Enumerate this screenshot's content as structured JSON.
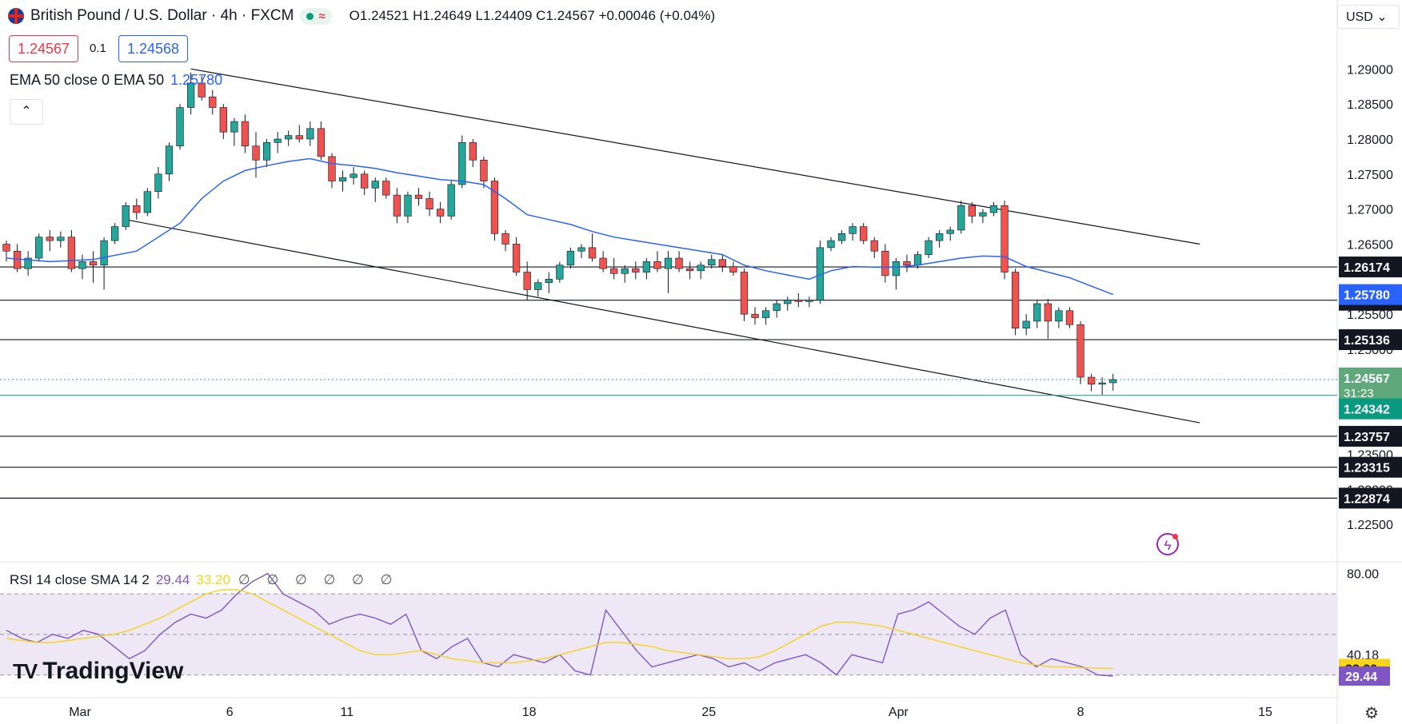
{
  "header": {
    "symbol_title": "British Pound / U.S. Dollar · 4h · FXCM",
    "ohlc": "O1.24521 H1.24649 L1.24409 C1.24567 +0.00046 (+0.04%)",
    "toggle_wave": "≈"
  },
  "quote": {
    "bid": "1.24567",
    "spread": "0.1",
    "ask": "1.24568"
  },
  "indicator": {
    "ema_label": "EMA 50 close 0 EMA 50",
    "ema_value": "1.25780",
    "collapse_icon": "chevron-up-icon",
    "collapse_glyph": "⌃"
  },
  "rsi_indicator": {
    "label": "RSI 14 close SMA 14 2",
    "rsi_value": "29.44",
    "sma_value": "33.20",
    "nulls": "∅ ∅ ∅ ∅ ∅ ∅"
  },
  "currency": "USD ⌄",
  "brand": {
    "name": "TradingView",
    "mark": "TV"
  },
  "icons": {
    "alert": "bolt-icon",
    "settings": "gear-icon",
    "settings_glyph": "⚙",
    "alert_glyph": "ϟ"
  },
  "colors": {
    "up": "#26a69a",
    "down": "#ef5350",
    "ema": "#2962ff",
    "rsi": "#7e57c2",
    "rsi_sma": "#f7d31b",
    "rsi_band": "#ede7f6"
  },
  "chart_data": [
    {
      "type": "candlestick",
      "title": "British Pound / U.S. Dollar · 4h · FXCM",
      "x_ticks": [
        "Mar",
        "6",
        "11",
        "18",
        "25",
        "Apr",
        "8",
        "15"
      ],
      "y_ticks": [
        "1.29000",
        "1.28500",
        "1.28000",
        "1.27500",
        "1.27000",
        "1.26500",
        "1.25500",
        "1.25000",
        "1.23500",
        "1.23000",
        "1.22500"
      ],
      "ylim": [
        1.22,
        1.293
      ],
      "candles": [
        [
          0,
          1.265,
          1.2655,
          1.2625,
          1.264
        ],
        [
          0.5,
          1.264,
          1.265,
          1.261,
          1.2615
        ],
        [
          1,
          1.2615,
          1.264,
          1.2605,
          1.263
        ],
        [
          1.5,
          1.263,
          1.2665,
          1.2625,
          1.266
        ],
        [
          2,
          1.266,
          1.267,
          1.264,
          1.2655
        ],
        [
          2.5,
          1.2655,
          1.2668,
          1.2645,
          1.266
        ],
        [
          3,
          1.266,
          1.267,
          1.261,
          1.2615
        ],
        [
          3.5,
          1.2615,
          1.2635,
          1.26,
          1.2625
        ],
        [
          4,
          1.2625,
          1.264,
          1.2595,
          1.262
        ],
        [
          4.5,
          1.262,
          1.266,
          1.2585,
          1.2655
        ],
        [
          5,
          1.2655,
          1.268,
          1.265,
          1.2675
        ],
        [
          5.5,
          1.2675,
          1.271,
          1.267,
          1.2705
        ],
        [
          6,
          1.2705,
          1.2715,
          1.2685,
          1.2695
        ],
        [
          6.5,
          1.2695,
          1.273,
          1.269,
          1.2725
        ],
        [
          7,
          1.2725,
          1.276,
          1.2715,
          1.275
        ],
        [
          7.5,
          1.275,
          1.2795,
          1.274,
          1.279
        ],
        [
          8,
          1.279,
          1.285,
          1.2785,
          1.2845
        ],
        [
          8.5,
          1.2845,
          1.2895,
          1.2835,
          1.288
        ],
        [
          9,
          1.288,
          1.289,
          1.2855,
          1.286
        ],
        [
          9.5,
          1.286,
          1.287,
          1.2835,
          1.2845
        ],
        [
          10,
          1.2845,
          1.285,
          1.28,
          1.281
        ],
        [
          10.5,
          1.281,
          1.283,
          1.279,
          1.2825
        ],
        [
          11,
          1.2825,
          1.2835,
          1.278,
          1.279
        ],
        [
          11.5,
          1.279,
          1.281,
          1.2745,
          1.277
        ],
        [
          12,
          1.277,
          1.28,
          1.276,
          1.2795
        ],
        [
          12.5,
          1.2795,
          1.281,
          1.278,
          1.28
        ],
        [
          13,
          1.28,
          1.2812,
          1.279,
          1.2805
        ],
        [
          13.5,
          1.2805,
          1.282,
          1.2795,
          1.28
        ],
        [
          14,
          1.28,
          1.2825,
          1.279,
          1.2815
        ],
        [
          14.5,
          1.2815,
          1.2825,
          1.277,
          1.2775
        ],
        [
          15,
          1.2775,
          1.278,
          1.273,
          1.274
        ],
        [
          15.5,
          1.274,
          1.2755,
          1.2725,
          1.2745
        ],
        [
          16,
          1.2745,
          1.276,
          1.2735,
          1.275
        ],
        [
          16.5,
          1.275,
          1.2755,
          1.272,
          1.273
        ],
        [
          17,
          1.273,
          1.2745,
          1.271,
          1.274
        ],
        [
          17.5,
          1.274,
          1.2745,
          1.2715,
          1.272
        ],
        [
          18,
          1.272,
          1.273,
          1.268,
          1.269
        ],
        [
          18.5,
          1.269,
          1.2725,
          1.268,
          1.272
        ],
        [
          19,
          1.272,
          1.273,
          1.2705,
          1.2715
        ],
        [
          19.5,
          1.2715,
          1.2725,
          1.269,
          1.27
        ],
        [
          20,
          1.27,
          1.271,
          1.268,
          1.269
        ],
        [
          20.5,
          1.269,
          1.274,
          1.2685,
          1.2735
        ],
        [
          21,
          1.2735,
          1.2805,
          1.273,
          1.2795
        ],
        [
          21.5,
          1.2795,
          1.28,
          1.276,
          1.277
        ],
        [
          22,
          1.277,
          1.2775,
          1.273,
          1.274
        ],
        [
          22.5,
          1.274,
          1.2745,
          1.2655,
          1.2665
        ],
        [
          23,
          1.2665,
          1.267,
          1.264,
          1.265
        ],
        [
          23.5,
          1.265,
          1.266,
          1.2605,
          1.261
        ],
        [
          24,
          1.261,
          1.2625,
          1.257,
          1.2585
        ],
        [
          24.5,
          1.2585,
          1.26,
          1.2575,
          1.2595
        ],
        [
          25,
          1.2595,
          1.261,
          1.258,
          1.26
        ],
        [
          25.5,
          1.26,
          1.2625,
          1.2595,
          1.262
        ],
        [
          26,
          1.262,
          1.2645,
          1.2615,
          1.264
        ],
        [
          26.5,
          1.264,
          1.265,
          1.263,
          1.2645
        ],
        [
          27,
          1.2645,
          1.2665,
          1.2625,
          1.263
        ],
        [
          27.5,
          1.263,
          1.264,
          1.261,
          1.2615
        ],
        [
          28,
          1.2615,
          1.263,
          1.26,
          1.2608
        ],
        [
          28.5,
          1.2608,
          1.262,
          1.2595,
          1.2615
        ],
        [
          29,
          1.2615,
          1.2625,
          1.26,
          1.261
        ],
        [
          29.5,
          1.261,
          1.263,
          1.26,
          1.2625
        ],
        [
          30,
          1.2625,
          1.264,
          1.261,
          1.2615
        ],
        [
          30.5,
          1.2615,
          1.264,
          1.258,
          1.263
        ],
        [
          31,
          1.263,
          1.264,
          1.261,
          1.2615
        ],
        [
          31.5,
          1.2615,
          1.2625,
          1.26,
          1.2612
        ],
        [
          32,
          1.2612,
          1.2625,
          1.26,
          1.262
        ],
        [
          32.5,
          1.262,
          1.2635,
          1.2615,
          1.2628
        ],
        [
          33,
          1.2628,
          1.2635,
          1.261,
          1.2618
        ],
        [
          33.5,
          1.2618,
          1.2625,
          1.2605,
          1.261
        ],
        [
          34,
          1.261,
          1.2615,
          1.254,
          1.255
        ],
        [
          34.5,
          1.255,
          1.256,
          1.2535,
          1.2545
        ],
        [
          35,
          1.2545,
          1.256,
          1.2535,
          1.2555
        ],
        [
          35.5,
          1.2555,
          1.257,
          1.2545,
          1.2565
        ],
        [
          36,
          1.2565,
          1.2575,
          1.2555,
          1.257
        ],
        [
          36.5,
          1.257,
          1.258,
          1.256,
          1.2568
        ],
        [
          37,
          1.2568,
          1.2575,
          1.256,
          1.257
        ],
        [
          37.5,
          1.257,
          1.2655,
          1.2565,
          1.2645
        ],
        [
          38,
          1.2645,
          1.266,
          1.264,
          1.2655
        ],
        [
          38.5,
          1.2655,
          1.267,
          1.265,
          1.2665
        ],
        [
          39,
          1.2665,
          1.268,
          1.2655,
          1.2675
        ],
        [
          39.5,
          1.2675,
          1.268,
          1.265,
          1.2655
        ],
        [
          40,
          1.2655,
          1.266,
          1.263,
          1.264
        ],
        [
          40.5,
          1.264,
          1.265,
          1.2595,
          1.2605
        ],
        [
          41,
          1.2605,
          1.263,
          1.2585,
          1.2625
        ],
        [
          41.5,
          1.2625,
          1.2635,
          1.261,
          1.262
        ],
        [
          42,
          1.262,
          1.264,
          1.2615,
          1.2635
        ],
        [
          42.5,
          1.2635,
          1.266,
          1.263,
          1.2655
        ],
        [
          43,
          1.2655,
          1.267,
          1.2645,
          1.2665
        ],
        [
          43.5,
          1.2665,
          1.2675,
          1.2655,
          1.267
        ],
        [
          44,
          1.267,
          1.2712,
          1.2665,
          1.2705
        ],
        [
          44.5,
          1.2705,
          1.271,
          1.268,
          1.269
        ],
        [
          45,
          1.269,
          1.27,
          1.268,
          1.2695
        ],
        [
          45.5,
          1.2695,
          1.271,
          1.269,
          1.2705
        ],
        [
          46,
          1.2705,
          1.2712,
          1.26,
          1.261
        ],
        [
          46.5,
          1.261,
          1.2615,
          1.252,
          1.253
        ],
        [
          47,
          1.253,
          1.255,
          1.252,
          1.254
        ],
        [
          47.5,
          1.254,
          1.257,
          1.253,
          1.2565
        ],
        [
          48,
          1.2565,
          1.2572,
          1.2515,
          1.254
        ],
        [
          48.5,
          1.254,
          1.256,
          1.253,
          1.2555
        ],
        [
          49,
          1.2555,
          1.256,
          1.253,
          1.2535
        ],
        [
          49.5,
          1.2535,
          1.254,
          1.245,
          1.246
        ],
        [
          50,
          1.246,
          1.2465,
          1.244,
          1.245
        ],
        [
          50.5,
          1.245,
          1.246,
          1.2435,
          1.2452
        ],
        [
          51,
          1.24521,
          1.24649,
          1.24409,
          1.24567
        ]
      ],
      "ema50": [
        [
          0,
          1.263
        ],
        [
          2,
          1.2625
        ],
        [
          4,
          1.2628
        ],
        [
          6,
          1.264
        ],
        [
          8,
          1.268
        ],
        [
          9,
          1.2715
        ],
        [
          10,
          1.274
        ],
        [
          11,
          1.2755
        ],
        [
          12,
          1.2762
        ],
        [
          13,
          1.2768
        ],
        [
          14,
          1.2772
        ],
        [
          15,
          1.2765
        ],
        [
          16,
          1.2762
        ],
        [
          17,
          1.2758
        ],
        [
          18,
          1.2752
        ],
        [
          19,
          1.2747
        ],
        [
          20,
          1.2742
        ],
        [
          21,
          1.274
        ],
        [
          22,
          1.2735
        ],
        [
          23,
          1.2715
        ],
        [
          24,
          1.2692
        ],
        [
          25,
          1.2685
        ],
        [
          26,
          1.2678
        ],
        [
          27,
          1.2668
        ],
        [
          28,
          1.266
        ],
        [
          29,
          1.2655
        ],
        [
          30,
          1.265
        ],
        [
          31,
          1.2645
        ],
        [
          32,
          1.264
        ],
        [
          33,
          1.2635
        ],
        [
          34,
          1.262
        ],
        [
          35,
          1.2612
        ],
        [
          36,
          1.2606
        ],
        [
          37,
          1.26
        ],
        [
          38,
          1.2612
        ],
        [
          39,
          1.2618
        ],
        [
          40,
          1.2617
        ],
        [
          41,
          1.2617
        ],
        [
          42,
          1.262
        ],
        [
          43,
          1.2625
        ],
        [
          44,
          1.263
        ],
        [
          45,
          1.2633
        ],
        [
          46,
          1.2632
        ],
        [
          47,
          1.2618
        ],
        [
          48,
          1.261
        ],
        [
          49,
          1.2602
        ],
        [
          50,
          1.259
        ],
        [
          51,
          1.2578
        ]
      ],
      "horizontal_levels": [
        "1.26174",
        "1.25699",
        "1.25136",
        "1.23757",
        "1.23315",
        "1.22874"
      ],
      "level_values": [
        1.26174,
        1.25699,
        1.25136,
        1.23757,
        1.23315,
        1.22874
      ],
      "ema_tag": "1.25780",
      "last_price_tag": "1.24567",
      "countdown": "31:23",
      "alert_tag": "1.24342",
      "trend_lines": [
        {
          "points": [
            [
              8.5,
              1.29
            ],
            [
              51,
              1.267
            ],
            [
              55,
              1.265
            ]
          ]
        },
        {
          "points": [
            [
              5.5,
              1.2685
            ],
            [
              51,
              1.2435
            ],
            [
              55,
              1.2395
            ]
          ]
        }
      ]
    },
    {
      "type": "line",
      "title": "RSI 14 close SMA 14 2",
      "y_ticks": [
        "80.00",
        "40.18",
        "31.38"
      ],
      "ylim": [
        20,
        85
      ],
      "rsi_tag": "29.44",
      "sma_tag": "33.20",
      "band": [
        30,
        70
      ],
      "series": [
        {
          "name": "RSI",
          "values": [
            52,
            48,
            46,
            50,
            48,
            52,
            50,
            44,
            38,
            42,
            50,
            56,
            60,
            58,
            62,
            70,
            76,
            80,
            70,
            66,
            62,
            55,
            58,
            60,
            58,
            55,
            60,
            42,
            38,
            44,
            48,
            36,
            34,
            40,
            38,
            36,
            40,
            32,
            30,
            62,
            52,
            42,
            34,
            36,
            38,
            40,
            38,
            34,
            36,
            32,
            36,
            38,
            40,
            36,
            30,
            40,
            38,
            36,
            60,
            62,
            66,
            60,
            54,
            50,
            58,
            62,
            40,
            34,
            38,
            36,
            34,
            30,
            29.44
          ]
        },
        {
          "name": "SMA",
          "values": [
            48,
            47,
            46,
            46,
            47,
            48,
            49,
            50,
            52,
            55,
            58,
            62,
            66,
            70,
            72,
            72,
            70,
            66,
            62,
            58,
            54,
            50,
            46,
            42,
            40,
            40,
            41,
            42,
            40,
            38,
            37,
            36,
            36,
            36,
            37,
            38,
            40,
            42,
            44,
            46,
            46,
            45,
            44,
            42,
            41,
            40,
            39,
            38,
            38,
            39,
            42,
            46,
            50,
            54,
            56,
            56,
            55,
            54,
            52,
            50,
            48,
            46,
            44,
            42,
            40,
            38,
            36,
            35,
            34,
            34,
            33.5,
            33.3,
            33.2
          ]
        }
      ]
    }
  ]
}
